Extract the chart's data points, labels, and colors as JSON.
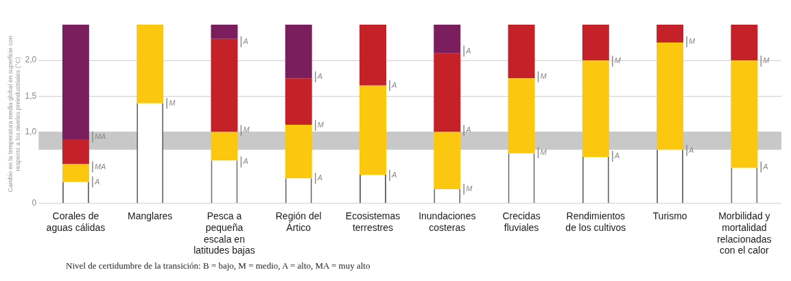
{
  "chart_data": {
    "type": "bar",
    "stacked": true,
    "ylabel": "Cambio en la temperatura media global en superficie con respecto a los niveles preindustriales (°C)",
    "categories": [
      "Corales de aguas cálidas",
      "Manglares",
      "Pesca a pequeña escala en latitudes bajas",
      "Región del Ártico",
      "Ecosistemas terrestres",
      "Inundaciones costeras",
      "Crecidas fluviales",
      "Rendimientos de los cultivos",
      "Turismo",
      "Morbilidad y mortalidad relacionadas con el calor"
    ],
    "series": [
      {
        "color": "#ffffff",
        "values": [
          0.3,
          1.4,
          0.6,
          0.35,
          0.4,
          0.2,
          0.7,
          0.65,
          0.75,
          0.5
        ]
      },
      {
        "color": "#fcc70f",
        "values": [
          0.25,
          1.1,
          0.4,
          0.75,
          1.25,
          0.8,
          1.05,
          1.35,
          1.5,
          1.5
        ]
      },
      {
        "color": "#c42128",
        "values": [
          0.35,
          null,
          1.3,
          0.65,
          0.85,
          1.1,
          0.75,
          0.5,
          0.25,
          0.5
        ]
      },
      {
        "color": "#7b1e5e",
        "values": [
          1.6,
          null,
          0.2,
          0.75,
          null,
          0.4,
          null,
          null,
          null,
          null
        ]
      }
    ],
    "ylim": [
      0,
      2.5
    ],
    "yticks": [
      0,
      {
        "value": 1,
        "label": "1,0"
      },
      {
        "value": 1.5,
        "label": "1,5"
      },
      {
        "value": 2,
        "label": "2,0"
      }
    ],
    "grid": "y",
    "legend": false,
    "bands": [
      {
        "axis": "y",
        "from": 0.75,
        "to": 1.0,
        "color": "#c8c8c8"
      }
    ],
    "annotations": [
      {
        "text": "A",
        "x": "Corales de aguas cálidas",
        "y": 0.3
      },
      {
        "text": "MA",
        "x": "Corales de aguas cálidas",
        "y": 0.51
      },
      {
        "text": "MA",
        "x": "Corales de aguas cálidas",
        "y": 0.93
      },
      {
        "text": "M",
        "x": "Manglares",
        "y": 1.4
      },
      {
        "text": "A",
        "x": "Pesca a pequeña escala en latitudes bajas",
        "y": 0.58
      },
      {
        "text": "M",
        "x": "Pesca a pequeña escala en latitudes bajas",
        "y": 1.02
      },
      {
        "text": "A",
        "x": "Pesca a pequeña escala en latitudes bajas",
        "y": 2.26
      },
      {
        "text": "A",
        "x": "Región del Ártico",
        "y": 0.35
      },
      {
        "text": "M",
        "x": "Región del Ártico",
        "y": 1.09
      },
      {
        "text": "A",
        "x": "Región del Ártico",
        "y": 1.77
      },
      {
        "text": "A",
        "x": "Ecosistemas terrestres",
        "y": 0.39
      },
      {
        "text": "A",
        "x": "Ecosistemas terrestres",
        "y": 1.65
      },
      {
        "text": "M",
        "x": "Inundaciones costeras",
        "y": 0.2
      },
      {
        "text": "A",
        "x": "Inundaciones costeras",
        "y": 1.02
      },
      {
        "text": "A",
        "x": "Inundaciones costeras",
        "y": 2.13
      },
      {
        "text": "M",
        "x": "Crecidas fluviales",
        "y": 0.71
      },
      {
        "text": "M",
        "x": "Crecidas fluviales",
        "y": 1.77
      },
      {
        "text": "A",
        "x": "Rendimientos de los cultivos",
        "y": 0.66
      },
      {
        "text": "M",
        "x": "Rendimientos de los cultivos",
        "y": 1.99
      },
      {
        "text": "A",
        "x": "Turismo",
        "y": 0.74
      },
      {
        "text": "M",
        "x": "Turismo",
        "y": 2.26
      },
      {
        "text": "A",
        "x": "Morbilidad y mortalidad relacionadas con el calor",
        "y": 0.51
      },
      {
        "text": "M",
        "x": "Morbilidad y mortalidad relacionadas con el calor",
        "y": 1.99
      },
      "Nivel de certidumbre de la transición: B = bajo, M = medio, A = alto, MA = muy alto"
    ]
  }
}
